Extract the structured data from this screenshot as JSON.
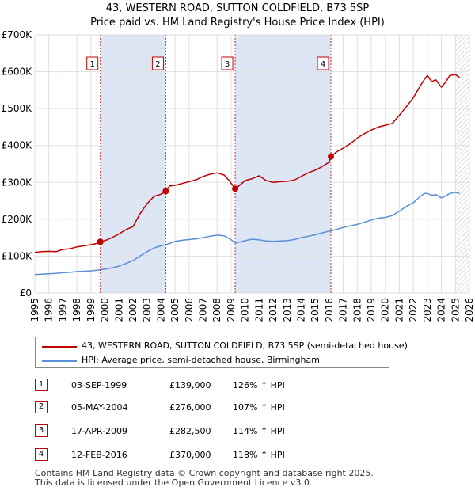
{
  "title_line1": "43, WESTERN ROAD, SUTTON COLDFIELD, B73 5SP",
  "title_line2": "Price paid vs. HM Land Registry's House Price Index (HPI)",
  "colors": {
    "property_line": "#c00000",
    "hpi_line": "#5b8ed6",
    "shade": "#dde6f5",
    "marker_border": "#c00000",
    "grid": "#e0e0e0"
  },
  "chart_data": {
    "type": "line",
    "title": "43, WESTERN ROAD, SUTTON COLDFIELD, B73 5SP — Price paid vs. HM Land Registry's House Price Index (HPI)",
    "xlim": [
      1995,
      2026
    ],
    "ylim": [
      0,
      700000
    ],
    "y_ticks": [
      0,
      100000,
      200000,
      300000,
      400000,
      500000,
      600000,
      700000
    ],
    "y_tick_labels": [
      "£0",
      "£100K",
      "£200K",
      "£300K",
      "£400K",
      "£500K",
      "£600K",
      "£700K"
    ],
    "x_ticks": [
      1995,
      1996,
      1997,
      1998,
      1999,
      2000,
      2001,
      2002,
      2003,
      2004,
      2005,
      2006,
      2007,
      2008,
      2009,
      2010,
      2011,
      2012,
      2013,
      2014,
      2015,
      2016,
      2017,
      2018,
      2019,
      2020,
      2021,
      2022,
      2023,
      2024,
      2025,
      2026
    ],
    "x_tick_labels": [
      "1995",
      "1996",
      "1997",
      "1998",
      "1999",
      "2000",
      "2001",
      "2002",
      "2003",
      "2004",
      "2005",
      "2006",
      "2007",
      "2008",
      "2009",
      "2010",
      "2011",
      "2012",
      "2013",
      "2014",
      "2015",
      "2016",
      "2017",
      "2018",
      "2019",
      "2020",
      "2021",
      "2022",
      "2023",
      "2024",
      "2025",
      "2026"
    ],
    "shaded_ranges": [
      [
        1999.67,
        2004.34
      ],
      [
        2009.29,
        2016.12
      ]
    ],
    "hatched_from": 2025.0,
    "series": [
      {
        "name": "43, WESTERN ROAD, SUTTON COLDFIELD, B73 5SP (semi-detached house)",
        "color": "#c00000",
        "x": [
          1995.0,
          1995.5,
          1996.0,
          1996.5,
          1997.0,
          1997.5,
          1998.0,
          1998.5,
          1999.0,
          1999.5,
          1999.67,
          2000.0,
          2000.5,
          2001.0,
          2001.5,
          2002.0,
          2002.5,
          2003.0,
          2003.5,
          2004.0,
          2004.34,
          2004.6,
          2005.0,
          2005.5,
          2006.0,
          2006.5,
          2007.0,
          2007.5,
          2008.0,
          2008.5,
          2008.9,
          2009.29,
          2009.6,
          2010.0,
          2010.5,
          2011.0,
          2011.5,
          2012.0,
          2012.5,
          2013.0,
          2013.5,
          2014.0,
          2014.5,
          2015.0,
          2015.5,
          2016.0,
          2016.12,
          2016.5,
          2017.0,
          2017.5,
          2018.0,
          2018.5,
          2019.0,
          2019.5,
          2020.0,
          2020.5,
          2021.0,
          2021.5,
          2022.0,
          2022.5,
          2022.8,
          2023.0,
          2023.3,
          2023.6,
          2024.0,
          2024.3,
          2024.6,
          2025.0,
          2025.3
        ],
        "values": [
          110000,
          112000,
          113000,
          112000,
          118000,
          120000,
          125000,
          128000,
          131000,
          135000,
          139000,
          142000,
          150000,
          160000,
          172000,
          180000,
          215000,
          242000,
          262000,
          268000,
          276000,
          290000,
          292000,
          297000,
          302000,
          307000,
          316000,
          322000,
          326000,
          320000,
          303000,
          282500,
          292000,
          305000,
          310000,
          318000,
          305000,
          300000,
          302000,
          303000,
          306000,
          316000,
          326000,
          333000,
          343000,
          355000,
          370000,
          382000,
          393000,
          405000,
          420000,
          432000,
          442000,
          450000,
          455000,
          460000,
          482000,
          505000,
          530000,
          562000,
          580000,
          590000,
          573000,
          578000,
          558000,
          572000,
          590000,
          592000,
          585000
        ]
      },
      {
        "name": "HPI: Average price, semi-detached house, Birmingham",
        "color": "#5b8ed6",
        "x": [
          1995.0,
          1995.5,
          1996.0,
          1996.5,
          1997.0,
          1997.5,
          1998.0,
          1998.5,
          1999.0,
          1999.5,
          2000.0,
          2000.5,
          2001.0,
          2001.5,
          2002.0,
          2002.5,
          2003.0,
          2003.5,
          2004.0,
          2004.5,
          2005.0,
          2005.5,
          2006.0,
          2006.5,
          2007.0,
          2007.5,
          2008.0,
          2008.5,
          2009.0,
          2009.29,
          2009.6,
          2010.0,
          2010.5,
          2011.0,
          2011.5,
          2012.0,
          2012.5,
          2013.0,
          2013.5,
          2014.0,
          2014.5,
          2015.0,
          2015.5,
          2016.0,
          2016.5,
          2017.0,
          2017.5,
          2018.0,
          2018.5,
          2019.0,
          2019.5,
          2020.0,
          2020.5,
          2021.0,
          2021.5,
          2022.0,
          2022.5,
          2022.8,
          2023.0,
          2023.3,
          2023.6,
          2024.0,
          2024.3,
          2024.6,
          2025.0,
          2025.3
        ],
        "values": [
          50000,
          51000,
          52000,
          53000,
          55000,
          56000,
          58000,
          59000,
          60000,
          62000,
          65000,
          68000,
          73000,
          80000,
          88000,
          100000,
          112000,
          122000,
          128000,
          133000,
          140000,
          143000,
          145000,
          147000,
          150000,
          154000,
          157000,
          155000,
          145000,
          135000,
          138000,
          142000,
          146000,
          144000,
          141000,
          140000,
          141000,
          142000,
          145000,
          150000,
          154000,
          158000,
          163000,
          168000,
          172000,
          178000,
          182000,
          186000,
          192000,
          198000,
          203000,
          205000,
          210000,
          222000,
          235000,
          245000,
          262000,
          270000,
          270000,
          265000,
          267000,
          258000,
          263000,
          270000,
          273000,
          270000
        ]
      }
    ],
    "markers": [
      {
        "label": "1",
        "x": 1999.67,
        "value": 139000
      },
      {
        "label": "2",
        "x": 2004.34,
        "value": 276000
      },
      {
        "label": "3",
        "x": 2009.29,
        "value": 282500
      },
      {
        "label": "4",
        "x": 2016.12,
        "value": 370000
      }
    ]
  },
  "legend": {
    "items": [
      {
        "label": "43, WESTERN ROAD, SUTTON COLDFIELD, B73 5SP (semi-detached house)",
        "color": "#c00000"
      },
      {
        "label": "HPI: Average price, semi-detached house, Birmingham",
        "color": "#5b8ed6"
      }
    ]
  },
  "transactions": [
    {
      "num": "1",
      "date": "03-SEP-1999",
      "price": "£139,000",
      "hpi": "126% ↑ HPI"
    },
    {
      "num": "2",
      "date": "05-MAY-2004",
      "price": "£276,000",
      "hpi": "107% ↑ HPI"
    },
    {
      "num": "3",
      "date": "17-APR-2009",
      "price": "£282,500",
      "hpi": "114% ↑ HPI"
    },
    {
      "num": "4",
      "date": "12-FEB-2016",
      "price": "£370,000",
      "hpi": "118% ↑ HPI"
    }
  ],
  "footer": {
    "line1": "Contains HM Land Registry data © Crown copyright and database right 2025.",
    "line2": "This data is licensed under the Open Government Licence v3.0."
  }
}
